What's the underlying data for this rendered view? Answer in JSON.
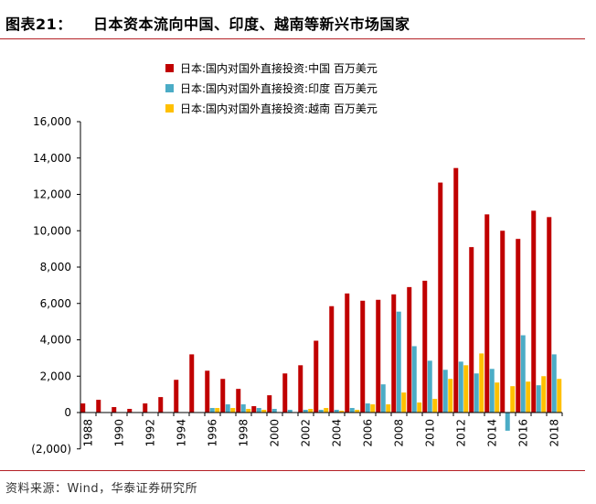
{
  "header": {
    "label": "图表21：",
    "title": "日本资本流向中国、印度、越南等新兴市场国家"
  },
  "footer": {
    "source": "资料来源：Wind，华泰证券研究所"
  },
  "chart_data": {
    "type": "bar",
    "x": [
      1988,
      1989,
      1990,
      1991,
      1992,
      1993,
      1994,
      1995,
      1996,
      1997,
      1998,
      1999,
      2000,
      2001,
      2002,
      2003,
      2004,
      2005,
      2006,
      2007,
      2008,
      2009,
      2010,
      2011,
      2012,
      2013,
      2014,
      2015,
      2016,
      2017,
      2018
    ],
    "x_tick_labels": [
      "1988",
      "1990",
      "1992",
      "1994",
      "1996",
      "1998",
      "2000",
      "2002",
      "2004",
      "2006",
      "2008",
      "2010",
      "2012",
      "2014",
      "2016",
      "2018"
    ],
    "y_tick_labels": [
      "(2,000)",
      "0",
      "2,000",
      "4,000",
      "6,000",
      "8,000",
      "10,000",
      "12,000",
      "14,000",
      "16,000"
    ],
    "ylim": [
      -2000,
      16000
    ],
    "series": [
      {
        "name": "日本:国内对国外直接投资:中国 百万美元",
        "color": "#c00000",
        "values": [
          500,
          700,
          300,
          200,
          500,
          850,
          1800,
          3200,
          2300,
          1850,
          1300,
          350,
          950,
          2150,
          2600,
          3950,
          5850,
          6550,
          6150,
          6200,
          6500,
          6900,
          7250,
          12650,
          13450,
          9100,
          10900,
          10000,
          9550,
          11100,
          10750
        ]
      },
      {
        "name": "日本:国内对国外直接投资:印度 百万美元",
        "color": "#4bacc6",
        "values": [
          0,
          0,
          0,
          0,
          0,
          0,
          0,
          0,
          250,
          450,
          450,
          250,
          200,
          150,
          150,
          150,
          150,
          250,
          500,
          1550,
          5550,
          3650,
          2850,
          2350,
          2800,
          2150,
          2400,
          -1000,
          4250,
          1500,
          3200
        ]
      },
      {
        "name": "日本:国内对国外直接投资:越南 百万美元",
        "color": "#ffc000",
        "values": [
          0,
          0,
          0,
          0,
          0,
          0,
          0,
          0,
          250,
          250,
          200,
          150,
          0,
          0,
          200,
          250,
          100,
          150,
          450,
          450,
          1100,
          550,
          750,
          1850,
          2600,
          3250,
          1650,
          1450,
          1700,
          2000,
          1850
        ]
      }
    ]
  }
}
